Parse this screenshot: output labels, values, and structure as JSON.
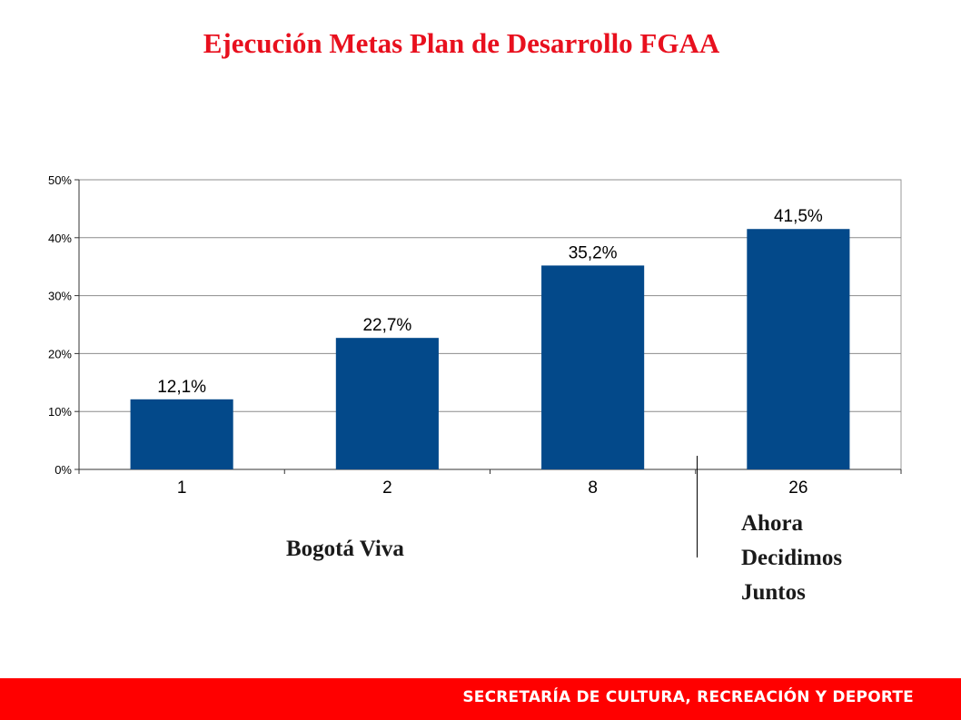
{
  "slide": {
    "title": "Ejecución Metas Plan de Desarrollo FGAA",
    "groups": [
      {
        "label": "Bogotá Viva"
      },
      {
        "label_lines": [
          "Ahora",
          "Decidimos",
          "Juntos"
        ]
      }
    ],
    "footer": "SECRETARÍA DE CULTURA, RECREACIÓN Y DEPORTE"
  },
  "chart_data": {
    "type": "bar",
    "categories": [
      "1",
      "2",
      "8",
      "26"
    ],
    "values": [
      12.1,
      22.7,
      35.2,
      41.5
    ],
    "data_labels": [
      "12,1%",
      "22,7%",
      "35,2%",
      "41,5%"
    ],
    "y_ticks": [
      "0%",
      "10%",
      "20%",
      "30%",
      "40%",
      "50%"
    ],
    "ylim": [
      0,
      50
    ],
    "grid": true,
    "bar_color": "#03498a"
  },
  "colors": {
    "title": "#e8101e",
    "footer_bar": "#ff0000",
    "footer_text": "#ffffff"
  }
}
